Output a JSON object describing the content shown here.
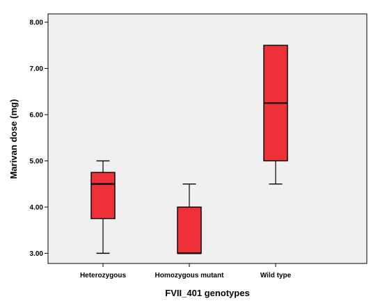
{
  "chart_data": {
    "type": "boxplot",
    "xlabel": "FVII_401 genotypes",
    "ylabel": "Marivan dose (mg)",
    "ylim": [
      2.78,
      8.18
    ],
    "yticks": [
      "3.00",
      "4.00",
      "5.00",
      "6.00",
      "7.00",
      "8.00"
    ],
    "categories": [
      "Heterozygous",
      "Homozygous mutant",
      "Wild type"
    ],
    "boxes": [
      {
        "category": "Heterozygous",
        "min": 3.0,
        "q1": 3.75,
        "median": 4.5,
        "q3": 4.75,
        "max": 5.0
      },
      {
        "category": "Homozygous mutant",
        "min": 3.0,
        "q1": 3.0,
        "median": 3.0,
        "q3": 4.0,
        "max": 4.5
      },
      {
        "category": "Wild type",
        "min": 4.5,
        "q1": 5.0,
        "median": 6.25,
        "q3": 7.5,
        "max": 7.5
      }
    ],
    "colors": {
      "plot_background": "#f0f0f0",
      "box_fill": "#ee3038",
      "outline": "#000000"
    },
    "grid": false,
    "legend": "none"
  }
}
